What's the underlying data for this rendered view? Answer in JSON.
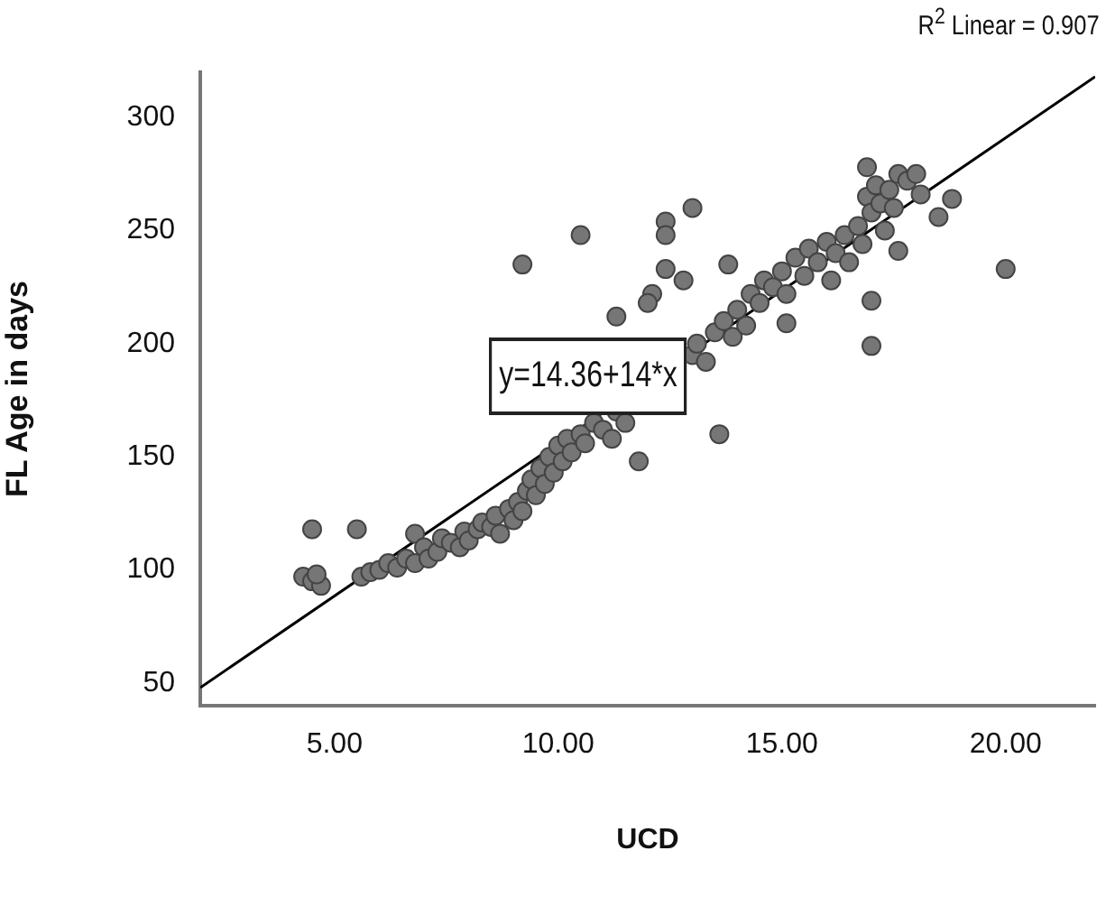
{
  "chart_data": {
    "type": "scatter",
    "xlabel": "UCD",
    "ylabel": "FL Age in days",
    "xlim": [
      2,
      22
    ],
    "ylim": [
      40,
      320
    ],
    "xticks": [
      {
        "value": 5,
        "label": "5.00"
      },
      {
        "value": 10,
        "label": "10.00"
      },
      {
        "value": 15,
        "label": "15.00"
      },
      {
        "value": 20,
        "label": "20.00"
      }
    ],
    "yticks": [
      50,
      100,
      150,
      200,
      250,
      300
    ],
    "grid": false,
    "legend": false,
    "marker": "circle",
    "annotations": [
      "y=14.36+14*x",
      "R$^{2}$ Linear = 0.907"
    ],
    "series": [
      {
        "color": "#767676",
        "x": [
          4.3,
          4.5,
          4.7,
          4.5,
          5.5,
          4.6,
          5.6,
          5.8,
          6.0,
          6.2,
          6.4,
          6.6,
          6.8,
          6.8,
          7.0,
          7.1,
          7.3,
          7.4,
          7.6,
          7.8,
          7.9,
          8.0,
          8.2,
          8.3,
          8.5,
          8.6,
          8.7,
          8.9,
          9.0,
          9.1,
          9.2,
          9.3,
          9.4,
          9.5,
          9.6,
          9.7,
          9.8,
          9.9,
          10.0,
          10.1,
          10.2,
          10.3,
          10.5,
          10.6,
          10.8,
          11.0,
          11.2,
          11.3,
          11.5,
          11.8,
          13.0,
          13.1,
          13.3,
          13.5,
          13.6,
          13.7,
          13.9,
          14.0,
          14.2,
          14.3,
          14.5,
          14.6,
          14.8,
          15.0,
          15.1,
          15.3,
          15.5,
          15.6,
          15.8,
          16.0,
          16.1,
          16.2,
          16.4,
          16.5,
          16.7,
          16.8,
          16.9,
          17.0,
          17.1,
          17.2,
          17.3,
          17.4,
          17.5,
          17.6,
          17.8,
          18.0,
          18.1,
          9.2,
          10.5,
          12.4,
          12.4,
          13.0,
          12.4,
          12.8,
          11.3,
          12.1,
          12.0,
          13.8,
          15.1,
          17.0,
          17.0,
          17.6,
          18.5,
          18.8,
          20.0,
          16.9
        ],
        "values": [
          97,
          95,
          93,
          118,
          118,
          98,
          97,
          99,
          100,
          103,
          101,
          105,
          103,
          116,
          110,
          105,
          108,
          114,
          112,
          110,
          117,
          113,
          118,
          121,
          119,
          124,
          116,
          127,
          122,
          130,
          126,
          135,
          140,
          133,
          145,
          138,
          150,
          143,
          155,
          148,
          158,
          152,
          160,
          156,
          165,
          162,
          158,
          170,
          165,
          148,
          195,
          200,
          192,
          205,
          160,
          210,
          203,
          215,
          208,
          222,
          218,
          228,
          225,
          232,
          222,
          238,
          230,
          242,
          236,
          245,
          228,
          240,
          248,
          236,
          252,
          244,
          265,
          258,
          270,
          262,
          250,
          268,
          260,
          275,
          272,
          275,
          266,
          235,
          248,
          254,
          248,
          260,
          233,
          228,
          212,
          222,
          218,
          235,
          209,
          219,
          199,
          241,
          256,
          264,
          233,
          278
        ]
      },
      {
        "type": "line",
        "color": "#000000",
        "marker": "none",
        "x": [
          2,
          22
        ],
        "values": [
          48,
          318
        ]
      }
    ]
  }
}
